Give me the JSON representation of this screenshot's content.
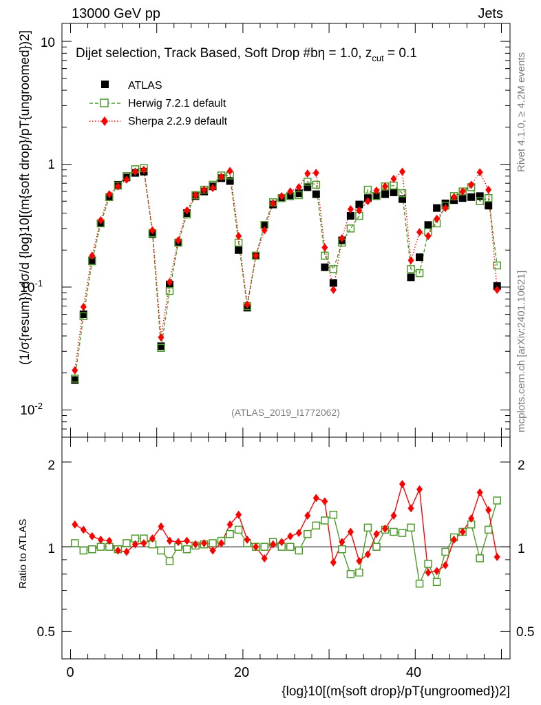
{
  "header": {
    "energy": "13000 GeV pp",
    "process": "Jets",
    "selection_title": "Dijet selection, Track Based, Soft Drop #b",
    "beta_text": "η = 1.0, z",
    "zcut_sub": "cut",
    "zcut_value": " = 0.1",
    "rivet_label": "Rivet 4.1.0, ≥ 4.2M events",
    "mcplots_label": "mcplots.cern.ch [arXiv:2401.10621]",
    "analysis_id": "(ATLAS_2019_I1772062)"
  },
  "axes": {
    "ylabel_main": "(1/σ{resum}) dσ/d {log}10[(m{soft drop}/pT{ungroomed})2]",
    "ylabel_ratio": "Ratio to ATLAS",
    "xlabel": "{log}10[(m{soft drop}/pT{ungroomed})2]",
    "main_ticks": [
      "10",
      "1",
      "10",
      "10"
    ],
    "main_tick_exps": [
      "",
      "",
      "-1",
      "-2"
    ],
    "ratio_ticks": [
      "2",
      "1",
      "0.5"
    ],
    "x_ticks": [
      "0",
      "20",
      "40"
    ]
  },
  "chart_data": [
    {
      "type": "scatter",
      "panel": "main",
      "yscale": "log",
      "ylim": [
        0.006,
        14
      ],
      "xlim": [
        -1,
        51
      ],
      "legend_position": "top-left",
      "x": [
        0.5,
        1.5,
        2.5,
        3.5,
        4.5,
        5.5,
        6.5,
        7.5,
        8.5,
        9.5,
        10.5,
        11.5,
        12.5,
        13.5,
        14.5,
        15.5,
        16.5,
        17.5,
        18.5,
        19.5,
        20.5,
        21.5,
        22.5,
        23.5,
        24.5,
        25.5,
        26.5,
        27.5,
        28.5,
        29.5,
        30.5,
        31.5,
        32.5,
        33.5,
        34.5,
        35.5,
        36.5,
        37.5,
        38.5,
        39.5,
        40.5,
        41.5,
        42.5,
        43.5,
        44.5,
        45.5,
        46.5,
        47.5,
        48.5,
        49.5
      ],
      "series": [
        {
          "name": "ATLAS",
          "color": "#000000",
          "marker": "square-filled",
          "values": [
            0.0175,
            0.06,
            0.165,
            0.33,
            0.54,
            0.68,
            0.78,
            0.85,
            0.87,
            0.27,
            0.033,
            0.105,
            0.23,
            0.4,
            0.55,
            0.6,
            0.66,
            0.77,
            0.73,
            0.2,
            0.068,
            0.18,
            0.32,
            0.47,
            0.53,
            0.55,
            0.58,
            0.65,
            0.57,
            0.145,
            0.108,
            0.24,
            0.38,
            0.47,
            0.53,
            0.55,
            0.57,
            0.59,
            0.52,
            0.12,
            0.175,
            0.32,
            0.44,
            0.48,
            0.51,
            0.53,
            0.54,
            0.55,
            0.46,
            0.102
          ]
        },
        {
          "name": "Herwig 7.2.1 default",
          "color": "#4c9a2a",
          "marker": "square-open",
          "line": "dashed",
          "values": [
            0.018,
            0.058,
            0.162,
            0.33,
            0.54,
            0.67,
            0.8,
            0.91,
            0.93,
            0.275,
            0.032,
            0.093,
            0.23,
            0.39,
            0.56,
            0.62,
            0.68,
            0.81,
            0.81,
            0.23,
            0.07,
            0.18,
            0.32,
            0.49,
            0.53,
            0.55,
            0.56,
            0.72,
            0.68,
            0.18,
            0.14,
            0.23,
            0.3,
            0.38,
            0.62,
            0.55,
            0.66,
            0.67,
            0.58,
            0.14,
            0.13,
            0.28,
            0.33,
            0.46,
            0.55,
            0.6,
            0.65,
            0.5,
            0.53,
            0.15
          ]
        },
        {
          "name": "Sherpa 2.2.9 default",
          "color": "#ff0000",
          "marker": "diamond-filled",
          "line": "dotted",
          "values": [
            0.021,
            0.069,
            0.18,
            0.35,
            0.57,
            0.66,
            0.75,
            0.87,
            0.9,
            0.29,
            0.039,
            0.11,
            0.24,
            0.42,
            0.56,
            0.62,
            0.64,
            0.79,
            0.88,
            0.26,
            0.072,
            0.18,
            0.29,
            0.48,
            0.55,
            0.6,
            0.65,
            0.84,
            0.85,
            0.21,
            0.095,
            0.25,
            0.43,
            0.42,
            0.5,
            0.61,
            0.66,
            0.76,
            0.87,
            0.165,
            0.28,
            0.26,
            0.36,
            0.44,
            0.54,
            0.6,
            0.68,
            0.86,
            0.62,
            0.095
          ]
        }
      ]
    },
    {
      "type": "scatter",
      "panel": "ratio",
      "yscale": "log",
      "ylim": [
        0.4,
        2.45
      ],
      "xlim": [
        -1,
        51
      ],
      "reference_line": 1,
      "x": [
        0.5,
        1.5,
        2.5,
        3.5,
        4.5,
        5.5,
        6.5,
        7.5,
        8.5,
        9.5,
        10.5,
        11.5,
        12.5,
        13.5,
        14.5,
        15.5,
        16.5,
        17.5,
        18.5,
        19.5,
        20.5,
        21.5,
        22.5,
        23.5,
        24.5,
        25.5,
        26.5,
        27.5,
        28.5,
        29.5,
        30.5,
        31.5,
        32.5,
        33.5,
        34.5,
        35.5,
        36.5,
        37.5,
        38.5,
        39.5,
        40.5,
        41.5,
        42.5,
        43.5,
        44.5,
        45.5,
        46.5,
        47.5,
        48.5,
        49.5
      ],
      "series": [
        {
          "name": "Herwig 7.2.1 default",
          "color": "#4c9a2a",
          "values": [
            1.03,
            0.97,
            0.98,
            1.0,
            1.0,
            0.98,
            1.03,
            1.07,
            1.07,
            1.02,
            0.97,
            0.89,
            1.0,
            0.98,
            1.01,
            1.02,
            1.03,
            1.05,
            1.11,
            1.15,
            1.03,
            1.0,
            1.0,
            1.04,
            1.0,
            1.0,
            0.97,
            1.11,
            1.19,
            1.24,
            1.3,
            0.98,
            0.8,
            0.81,
            1.17,
            1.0,
            1.15,
            1.13,
            1.12,
            1.17,
            0.74,
            0.87,
            0.75,
            0.96,
            1.08,
            1.13,
            1.2,
            0.91,
            1.15,
            1.46
          ]
        },
        {
          "name": "Sherpa 2.2.9 default",
          "color": "#ff0000",
          "values": [
            1.2,
            1.15,
            1.09,
            1.06,
            1.05,
            0.97,
            0.96,
            1.02,
            1.03,
            1.07,
            1.18,
            1.05,
            1.04,
            1.05,
            1.02,
            1.03,
            0.97,
            1.03,
            1.2,
            1.3,
            1.06,
            1.0,
            0.91,
            1.02,
            1.04,
            1.09,
            1.12,
            1.29,
            1.49,
            1.45,
            0.88,
            1.04,
            1.13,
            0.89,
            0.94,
            1.11,
            1.16,
            1.29,
            1.67,
            1.37,
            1.6,
            0.81,
            0.82,
            0.86,
            1.06,
            1.13,
            1.26,
            1.56,
            1.35,
            0.92
          ]
        }
      ]
    }
  ]
}
